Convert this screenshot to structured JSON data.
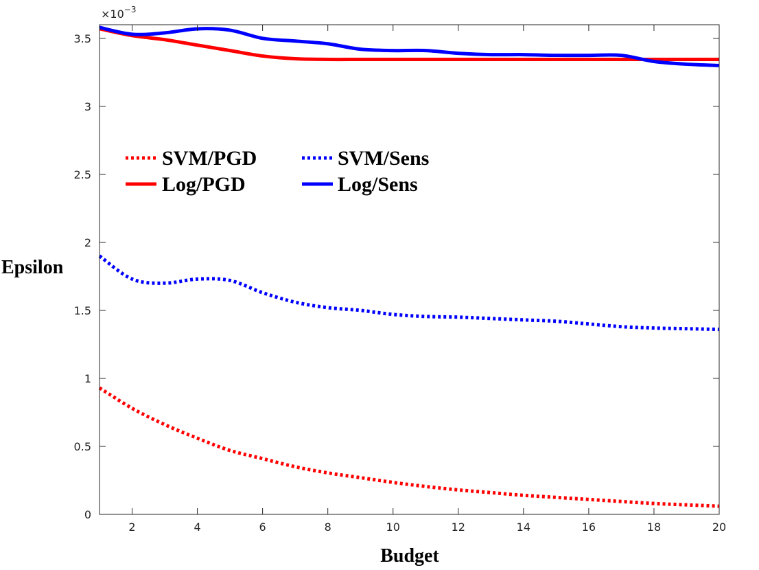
{
  "chart_data": {
    "type": "line",
    "title": "",
    "xlabel": "Budget",
    "ylabel": "Epsilon",
    "y_multiplier": "×10",
    "y_exponent": "−3",
    "xlim": [
      1,
      20
    ],
    "ylim": [
      0,
      3.6
    ],
    "x_ticks": [
      2,
      4,
      6,
      8,
      10,
      12,
      14,
      16,
      18,
      20
    ],
    "y_ticks": [
      0,
      0.5,
      1,
      1.5,
      2,
      2.5,
      3,
      3.5
    ],
    "y_tick_labels": [
      "0",
      "0.5",
      "1",
      "1.5",
      "2",
      "2.5",
      "3",
      "3.5"
    ],
    "legend_position": "upper-left",
    "series": [
      {
        "name": "SVM/PGD",
        "color": "#ff0000",
        "style": "dotted",
        "x": [
          1,
          2,
          3,
          4,
          5,
          6,
          7,
          8,
          9,
          10,
          11,
          12,
          13,
          14,
          15,
          16,
          17,
          18,
          19,
          20
        ],
        "values": [
          0.93,
          0.78,
          0.66,
          0.56,
          0.47,
          0.41,
          0.35,
          0.305,
          0.27,
          0.235,
          0.205,
          0.18,
          0.16,
          0.14,
          0.125,
          0.11,
          0.095,
          0.08,
          0.07,
          0.06
        ]
      },
      {
        "name": "Log/PGD",
        "color": "#ff0000",
        "style": "solid",
        "x": [
          1,
          2,
          3,
          4,
          5,
          6,
          7,
          8,
          9,
          10,
          11,
          12,
          13,
          14,
          15,
          16,
          17,
          18,
          19,
          20
        ],
        "values": [
          3.57,
          3.52,
          3.49,
          3.45,
          3.41,
          3.37,
          3.35,
          3.345,
          3.345,
          3.345,
          3.345,
          3.345,
          3.345,
          3.345,
          3.345,
          3.345,
          3.345,
          3.345,
          3.345,
          3.345
        ]
      },
      {
        "name": "SVM/Sens",
        "color": "#0000ff",
        "style": "dotted",
        "x": [
          1,
          2,
          3,
          4,
          5,
          6,
          7,
          8,
          9,
          10,
          11,
          12,
          13,
          14,
          15,
          16,
          17,
          18,
          19,
          20
        ],
        "values": [
          1.9,
          1.73,
          1.7,
          1.73,
          1.72,
          1.63,
          1.56,
          1.52,
          1.5,
          1.47,
          1.455,
          1.45,
          1.44,
          1.43,
          1.42,
          1.4,
          1.38,
          1.37,
          1.365,
          1.36
        ]
      },
      {
        "name": "Log/Sens",
        "color": "#0000ff",
        "style": "solid",
        "x": [
          1,
          2,
          3,
          4,
          5,
          6,
          7,
          8,
          9,
          10,
          11,
          12,
          13,
          14,
          15,
          16,
          17,
          18,
          19,
          20
        ],
        "values": [
          3.58,
          3.53,
          3.54,
          3.57,
          3.56,
          3.5,
          3.48,
          3.46,
          3.42,
          3.41,
          3.41,
          3.39,
          3.38,
          3.38,
          3.375,
          3.375,
          3.375,
          3.33,
          3.31,
          3.3
        ]
      }
    ]
  }
}
